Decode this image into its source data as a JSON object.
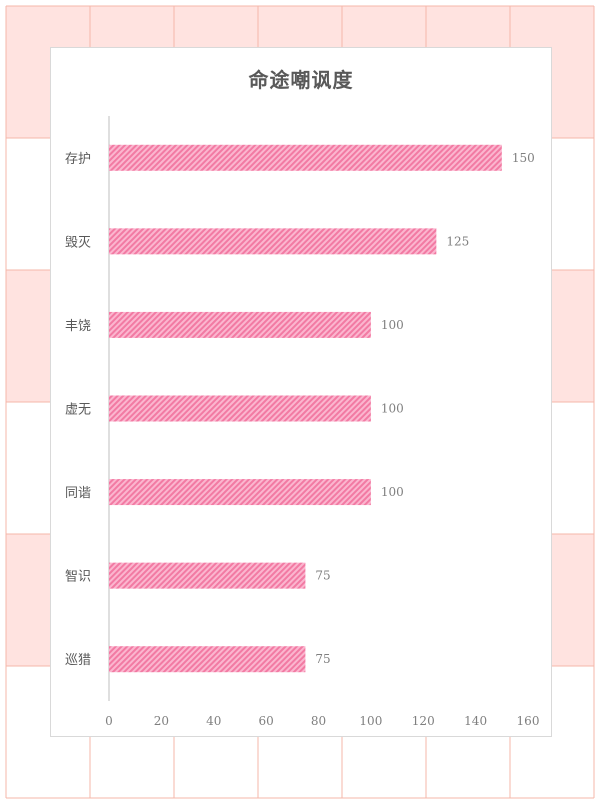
{
  "chart_data": {
    "type": "bar",
    "orientation": "horizontal",
    "title": "命途嘲讽度",
    "categories": [
      "存护",
      "毁灭",
      "丰饶",
      "虚无",
      "同谐",
      "智识",
      "巡猎"
    ],
    "values": [
      150,
      125,
      100,
      100,
      100,
      75,
      75
    ],
    "xlim": [
      0,
      160
    ],
    "xticks": [
      0,
      20,
      40,
      60,
      80,
      100,
      120,
      140,
      160
    ],
    "data_labels": true,
    "grid": false,
    "bar_color": "#f27aa3",
    "bar_pattern": "diagonal-hatch"
  },
  "colors": {
    "background_tile": "#ffe3e0",
    "background_line": "#f4b7aa",
    "card_border": "#d9d9d9",
    "axis": "#bfbfbf"
  }
}
